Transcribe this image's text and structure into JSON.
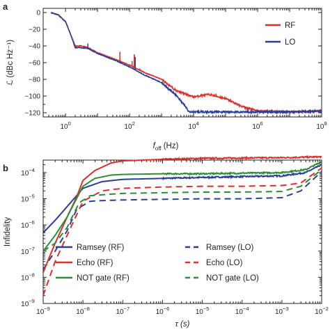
{
  "chart_data": [
    {
      "panel_label": "a",
      "type": "line",
      "xlabel": "f",
      "xlabel_sub": "off",
      "xlabel_unit": " (Hz)",
      "ylabel": "ℒ (dBc Hz⁻¹)",
      "x_scale": "log",
      "xlim": [
        0.2,
        100000000
      ],
      "ylim": [
        -125,
        5
      ],
      "x_tick_exps": [
        "0",
        "2",
        "4",
        "6",
        "8"
      ],
      "y_ticks": [
        "0",
        "−20",
        "−40",
        "−60",
        "−80",
        "−100",
        "−120"
      ],
      "legend_position": "top-right",
      "series": [
        {
          "name": "RF",
          "color": "#d7312b",
          "points": [
            [
              0.35,
              0
            ],
            [
              0.6,
              -3
            ],
            [
              1.0,
              -11
            ],
            [
              1.5,
              -28
            ],
            [
              2.0,
              -40
            ],
            [
              3.0,
              -40
            ],
            [
              5.0,
              -42
            ],
            [
              10,
              -48
            ],
            [
              30,
              -55
            ],
            [
              100,
              -63
            ],
            [
              300,
              -72
            ],
            [
              1000,
              -80
            ],
            [
              3000,
              -94
            ],
            [
              10000,
              -101
            ],
            [
              30000,
              -98
            ],
            [
              100000,
              -103
            ],
            [
              300000,
              -112
            ],
            [
              1000000,
              -118
            ],
            [
              10000000,
              -119
            ],
            [
              100000000,
              -118
            ]
          ],
          "spikes": [
            [
              5,
              -37
            ],
            [
              50,
              -47
            ],
            [
              120,
              -58
            ],
            [
              140,
              -50
            ],
            [
              210,
              -67
            ],
            [
              5000,
              -96
            ],
            [
              50000,
              -97
            ]
          ]
        },
        {
          "name": "LO",
          "color": "#2c3e94",
          "points": [
            [
              0.35,
              0
            ],
            [
              0.6,
              -3
            ],
            [
              1.0,
              -11
            ],
            [
              1.5,
              -28
            ],
            [
              2.0,
              -42
            ],
            [
              3.0,
              -42
            ],
            [
              5.0,
              -43
            ],
            [
              10,
              -49
            ],
            [
              30,
              -56
            ],
            [
              100,
              -65
            ],
            [
              300,
              -75
            ],
            [
              1000,
              -84
            ],
            [
              3000,
              -100
            ],
            [
              6000,
              -114
            ],
            [
              7000,
              -119
            ],
            [
              10000,
              -119
            ],
            [
              100000,
              -119
            ],
            [
              1000000,
              -119
            ],
            [
              10000000,
              -119
            ],
            [
              100000000,
              -118
            ]
          ],
          "spikes": [
            [
              5,
              -38
            ],
            [
              150,
              -53
            ],
            [
              230,
              -72
            ]
          ]
        }
      ]
    },
    {
      "panel_label": "b",
      "type": "line",
      "xlabel": "τ (s)",
      "ylabel": "Infidelity",
      "x_scale": "log",
      "y_scale": "log",
      "xlim": [
        1e-09,
        0.01
      ],
      "ylim": [
        1e-09,
        0.0003
      ],
      "x_tick_exps": [
        "−9",
        "−8",
        "−7",
        "−6",
        "−5",
        "−4",
        "−3",
        "−2"
      ],
      "y_tick_exps": [
        "−9",
        "−8",
        "−7",
        "−6",
        "−5",
        "−4"
      ],
      "legend_position": "bottom",
      "legend_columns": 2,
      "series": [
        {
          "name": "Ramsey (RF)",
          "color": "#2c3e94",
          "dash": false,
          "points": [
            [
              1e-09,
              5e-07
            ],
            [
              2e-09,
              1.5e-06
            ],
            [
              4e-09,
              5e-06
            ],
            [
              1e-08,
              2.5e-05
            ],
            [
              3e-08,
              4.5e-05
            ],
            [
              1e-07,
              5.5e-05
            ],
            [
              1e-06,
              6e-05
            ],
            [
              1e-05,
              6.5e-05
            ],
            [
              0.0001,
              7e-05
            ],
            [
              0.001,
              7.5e-05
            ],
            [
              0.004,
              0.0001
            ],
            [
              0.01,
              0.0002
            ]
          ]
        },
        {
          "name": "Ramsey (LO)",
          "color": "#2c3e94",
          "dash": true,
          "points": [
            [
              1e-09,
              2e-08
            ],
            [
              2e-09,
              1e-07
            ],
            [
              4e-09,
              6e-07
            ],
            [
              7e-09,
              4e-06
            ],
            [
              1.5e-08,
              8e-06
            ],
            [
              3e-08,
              8.5e-06
            ],
            [
              1e-07,
              9e-06
            ],
            [
              1e-06,
              9.5e-06
            ],
            [
              1e-05,
              1e-05
            ],
            [
              0.0001,
              1e-05
            ],
            [
              0.001,
              1.1e-05
            ],
            [
              0.003,
              2e-05
            ],
            [
              0.01,
              0.00011
            ]
          ]
        },
        {
          "name": "Echo (RF)",
          "color": "#d7312b",
          "dash": false,
          "points": [
            [
              1e-09,
              1.5e-08
            ],
            [
              1.5e-09,
              7e-08
            ],
            [
              2e-09,
              2e-07
            ],
            [
              4e-09,
              2e-06
            ],
            [
              7e-09,
              1.2e-05
            ],
            [
              1e-08,
              5e-05
            ],
            [
              2e-08,
              0.00012
            ],
            [
              5e-08,
              0.00023
            ],
            [
              1e-07,
              0.00028
            ],
            [
              1e-06,
              0.00032
            ],
            [
              1e-05,
              0.00035
            ],
            [
              0.0001,
              0.00036
            ],
            [
              0.001,
              0.00037
            ],
            [
              0.01,
              0.0004
            ]
          ]
        },
        {
          "name": "Echo (LO)",
          "color": "#d7312b",
          "dash": true,
          "points": [
            [
              1e-09,
              2e-09
            ],
            [
              2e-09,
              4e-08
            ],
            [
              4e-09,
              4e-07
            ],
            [
              7e-09,
              2.5e-06
            ],
            [
              1e-08,
              8e-06
            ],
            [
              3e-08,
              2e-05
            ],
            [
              1e-07,
              2.5e-05
            ],
            [
              1e-06,
              2.8e-05
            ],
            [
              1e-05,
              3e-05
            ],
            [
              0.0001,
              3e-05
            ],
            [
              0.001,
              3.2e-05
            ],
            [
              0.003,
              4e-05
            ],
            [
              0.01,
              0.00015
            ]
          ]
        },
        {
          "name": "NOT gate (RF)",
          "color": "#2e8b3a",
          "dash": false,
          "points": [
            [
              1e-09,
              1e-07
            ],
            [
              2e-09,
              4e-07
            ],
            [
              4e-09,
              2e-06
            ],
            [
              1e-08,
              3e-05
            ],
            [
              2e-08,
              6e-05
            ],
            [
              5e-08,
              8e-05
            ],
            [
              1e-07,
              8.5e-05
            ],
            [
              1e-06,
              9e-05
            ],
            [
              1e-05,
              9e-05
            ],
            [
              0.0001,
              9.5e-05
            ],
            [
              0.001,
              0.0001
            ],
            [
              0.004,
              0.00013
            ],
            [
              0.01,
              0.00026
            ]
          ]
        },
        {
          "name": "NOT gate (LO)",
          "color": "#2e8b3a",
          "dash": true,
          "points": [
            [
              1e-09,
              1e-07
            ],
            [
              2e-09,
              2e-07
            ],
            [
              4e-09,
              8e-07
            ],
            [
              8e-09,
              7e-06
            ],
            [
              1.5e-08,
              1.3e-05
            ],
            [
              5e-08,
              1.5e-05
            ],
            [
              1e-07,
              1.6e-05
            ],
            [
              1e-06,
              1.7e-05
            ],
            [
              1e-05,
              1.8e-05
            ],
            [
              0.0001,
              1.8e-05
            ],
            [
              0.001,
              1.9e-05
            ],
            [
              0.003,
              3e-05
            ],
            [
              0.01,
              0.00013
            ]
          ]
        }
      ]
    }
  ]
}
